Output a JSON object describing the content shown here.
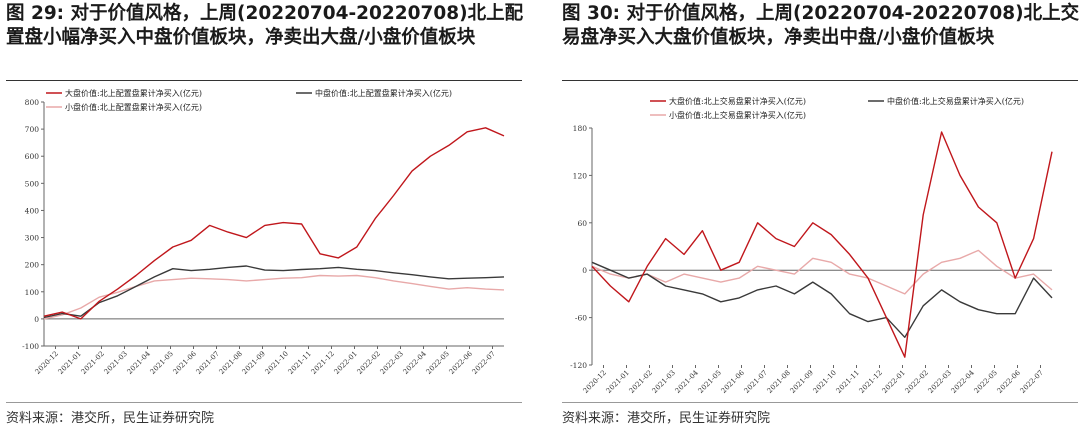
{
  "panels": [
    {
      "title": "图 29: 对于价值风格，上周(20220704-20220708)北上配置盘小幅净买入中盘价值板块，净卖出大盘/小盘价值板块",
      "source": "资料来源：港交所，民生证券研究院"
    },
    {
      "title": "图 30: 对于价值风格，上周(20220704-20220708)北上交易盘净买入大盘价值板块，净卖出中盘/小盘价值板块",
      "source": "资料来源：港交所，民生证券研究院"
    }
  ],
  "chart_data": [
    {
      "type": "line",
      "title": "",
      "xlabel": "",
      "ylabel": "",
      "ylim": [
        -100,
        800
      ],
      "yticks": [
        -100,
        0,
        100,
        200,
        300,
        400,
        500,
        600,
        700,
        800
      ],
      "x_tick_labels": [
        "2020-12",
        "2021-01",
        "2021-02",
        "2021-03",
        "2021-04",
        "2021-05",
        "2021-06",
        "2021-07",
        "2021-08",
        "2021-09",
        "2021-10",
        "2021-11",
        "2021-12",
        "2022-01",
        "2022-02",
        "2022-03",
        "2022-04",
        "2022-05",
        "2022-06",
        "2022-07"
      ],
      "x": [
        "2020-12",
        "2021-01",
        "2021-01b",
        "2021-02",
        "2021-02b",
        "2021-03",
        "2021-04",
        "2021-05",
        "2021-06",
        "2021-07",
        "2021-07b",
        "2021-08",
        "2021-08b",
        "2021-09",
        "2021-10",
        "2021-11",
        "2021-11b",
        "2021-12",
        "2022-01",
        "2022-02",
        "2022-03",
        "2022-04",
        "2022-05",
        "2022-06",
        "2022-06b",
        "2022-07"
      ],
      "legend": "top",
      "series": [
        {
          "name": "大盘价值:北上配置盘累计净买入(亿元)",
          "color": "#c0171c",
          "values": [
            10,
            25,
            0,
            65,
            110,
            160,
            215,
            265,
            290,
            345,
            320,
            300,
            345,
            355,
            350,
            240,
            225,
            265,
            370,
            455,
            545,
            600,
            640,
            690,
            705,
            675
          ]
        },
        {
          "name": "中盘价值:北上配置盘累计净买入(亿元)",
          "color": "#3a3a3a",
          "values": [
            5,
            20,
            10,
            60,
            85,
            120,
            155,
            185,
            178,
            183,
            190,
            195,
            180,
            178,
            182,
            185,
            190,
            183,
            178,
            170,
            163,
            155,
            148,
            150,
            152,
            155
          ]
        },
        {
          "name": "小盘价值:北上配置盘累计净买入(亿元)",
          "color": "#e8a9a9",
          "values": [
            0,
            15,
            40,
            80,
            98,
            120,
            140,
            145,
            150,
            148,
            145,
            140,
            145,
            150,
            152,
            160,
            158,
            160,
            152,
            140,
            130,
            120,
            110,
            115,
            110,
            107
          ]
        }
      ]
    },
    {
      "type": "line",
      "title": "",
      "xlabel": "",
      "ylabel": "",
      "ylim": [
        -120,
        180
      ],
      "yticks": [
        -120,
        -60,
        0,
        60,
        120,
        180
      ],
      "x_tick_labels": [
        "2020-12",
        "2021-01",
        "2021-02",
        "2021-03",
        "2021-04",
        "2021-05",
        "2021-06",
        "2021-07",
        "2021-08",
        "2021-09",
        "2021-10",
        "2021-11",
        "2021-12",
        "2022-01",
        "2022-02",
        "2022-03",
        "2022-04",
        "2022-05",
        "2022-06",
        "2022-07"
      ],
      "x": [
        "2020-12",
        "2021-01",
        "2021-01b",
        "2021-02",
        "2021-02b",
        "2021-03",
        "2021-04",
        "2021-05",
        "2021-06",
        "2021-07",
        "2021-07b",
        "2021-08",
        "2021-08b",
        "2021-09",
        "2021-10",
        "2021-11",
        "2021-11b",
        "2021-12",
        "2022-01",
        "2022-02",
        "2022-03",
        "2022-04",
        "2022-05",
        "2022-06",
        "2022-06b",
        "2022-07"
      ],
      "legend": "top",
      "series": [
        {
          "name": "大盘价值:北上交易盘累计净买入(亿元)",
          "color": "#c0171c",
          "values": [
            5,
            -20,
            -40,
            5,
            40,
            20,
            50,
            0,
            10,
            60,
            40,
            30,
            60,
            45,
            20,
            -10,
            -60,
            -110,
            70,
            175,
            120,
            80,
            60,
            -10,
            40,
            150
          ]
        },
        {
          "name": "中盘价值:北上交易盘累计净买入(亿元)",
          "color": "#3a3a3a",
          "values": [
            10,
            0,
            -10,
            -5,
            -20,
            -25,
            -30,
            -40,
            -35,
            -25,
            -20,
            -30,
            -15,
            -30,
            -55,
            -65,
            -60,
            -85,
            -45,
            -25,
            -40,
            -50,
            -55,
            -55,
            -10,
            -35
          ]
        },
        {
          "name": "小盘价值:北上交易盘累计净买入(亿元)",
          "color": "#e8a9a9",
          "values": [
            5,
            -5,
            -10,
            -5,
            -15,
            -5,
            -10,
            -15,
            -10,
            5,
            0,
            -5,
            15,
            10,
            -5,
            -10,
            -20,
            -30,
            -5,
            10,
            15,
            25,
            5,
            -10,
            -5,
            -25
          ]
        }
      ]
    }
  ]
}
